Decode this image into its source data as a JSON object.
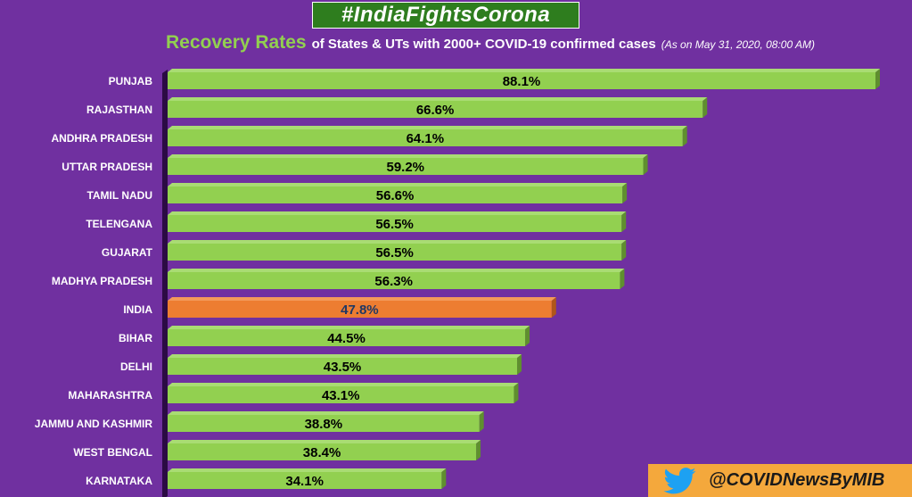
{
  "header": {
    "hashtag": "#IndiaFightsCorona",
    "title_main": "Recovery Rates",
    "title_rest": "of States & UTs with 2000+ COVID-19 confirmed cases",
    "title_date": "(As on May 31, 2020, 08:00 AM)"
  },
  "footer": {
    "handle": "@COVIDNewsByMIB",
    "icon": "twitter-bird-icon"
  },
  "colors": {
    "background": "#7030a0",
    "bar": "#92d050",
    "bar_dark": "#5f8f2e",
    "highlight": "#ed7d31",
    "highlight_dark": "#b0561a",
    "handle_bg": "#f4a83c"
  },
  "chart_data": {
    "type": "bar",
    "orientation": "horizontal",
    "title": "Recovery Rates of States & UTs with 2000+ COVID-19 confirmed cases",
    "categories": [
      "PUNJAB",
      "RAJASTHAN",
      "ANDHRA PRADESH",
      "UTTAR PRADESH",
      "TAMIL NADU",
      "TELENGANA",
      "GUJARAT",
      "MADHYA PRADESH",
      "INDIA",
      "BIHAR",
      "DELHI",
      "MAHARASHTRA",
      "JAMMU AND KASHMIR",
      "WEST BENGAL",
      "KARNATAKA"
    ],
    "values": [
      88.1,
      66.6,
      64.1,
      59.2,
      56.6,
      56.5,
      56.5,
      56.3,
      47.8,
      44.5,
      43.5,
      43.1,
      38.8,
      38.4,
      34.1
    ],
    "labels": [
      "88.1%",
      "66.6%",
      "64.1%",
      "59.2%",
      "56.6%",
      "56.5%",
      "56.5%",
      "56.3%",
      "47.8%",
      "44.5%",
      "43.5%",
      "43.1%",
      "38.8%",
      "38.4%",
      "34.1%"
    ],
    "highlight_category": "INDIA",
    "xlim": [
      0,
      88.1
    ],
    "xlabel": "",
    "ylabel": "",
    "grid": false,
    "legend": "none"
  }
}
